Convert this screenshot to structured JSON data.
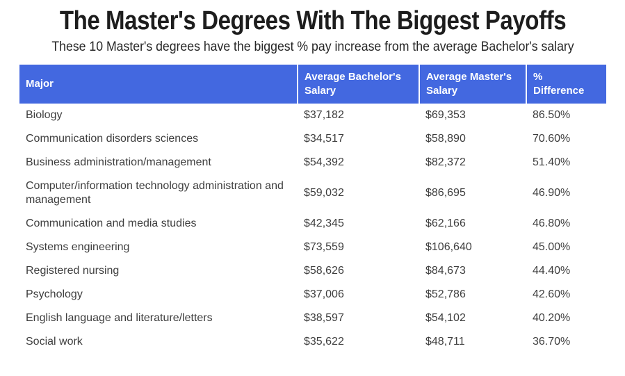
{
  "title": "The Master's Degrees With The Biggest Payoffs",
  "subtitle": "These 10 Master's degrees have the biggest % pay increase from the average Bachelor's salary",
  "colors": {
    "header_bg": "#4368E0",
    "header_text": "#ffffff",
    "title_text": "#1d1d1d",
    "subtitle_text": "#262626",
    "body_text": "#3e3e3e"
  },
  "chart_data": {
    "type": "table",
    "title": "The Master's Degrees With The Biggest Payoffs",
    "subtitle": "These 10 Master's degrees have the biggest % pay increase from the average Bachelor's salary",
    "columns": [
      "Major",
      "Average Bachelor's Salary",
      "Average Master's Salary",
      "% Difference"
    ],
    "rows": [
      [
        "Biology",
        "$37,182",
        "$69,353",
        "86.50%"
      ],
      [
        "Communication disorders sciences",
        "$34,517",
        "$58,890",
        "70.60%"
      ],
      [
        "Business administration/management",
        "$54,392",
        "$82,372",
        "51.40%"
      ],
      [
        "Computer/information technology administration and management",
        "$59,032",
        "$86,695",
        "46.90%"
      ],
      [
        "Communication and media studies",
        "$42,345",
        "$62,166",
        "46.80%"
      ],
      [
        "Systems engineering",
        "$73,559",
        "$106,640",
        "45.00%"
      ],
      [
        "Registered nursing",
        "$58,626",
        "$84,673",
        "44.40%"
      ],
      [
        "Psychology",
        "$37,006",
        "$52,786",
        "42.60%"
      ],
      [
        "English language and literature/letters",
        "$38,597",
        "$54,102",
        "40.20%"
      ],
      [
        "Social work",
        "$35,622",
        "$48,711",
        "36.70%"
      ]
    ],
    "layout": {
      "header_style": "blue-banner",
      "grid": false,
      "row_dividers": false,
      "alignment": "left"
    }
  }
}
